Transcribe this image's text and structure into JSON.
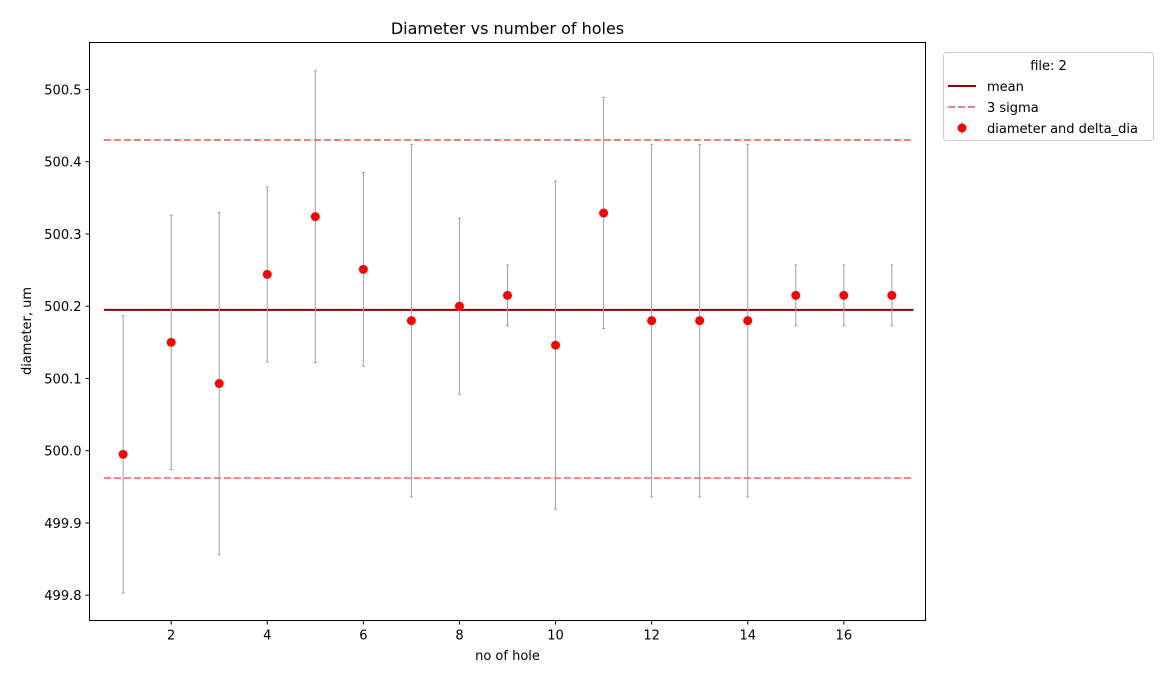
{
  "chart_data": {
    "type": "scatter",
    "title": "Diameter vs number of holes",
    "xlabel": "no of hole",
    "ylabel": "diameter, um",
    "xlim": [
      0.3,
      17.7
    ],
    "ylim": [
      499.765,
      500.565
    ],
    "xticks": [
      2,
      4,
      6,
      8,
      10,
      12,
      14,
      16
    ],
    "yticks": [
      499.8,
      499.9,
      500.0,
      500.1,
      500.2,
      500.3,
      500.4,
      500.5
    ],
    "ytick_labels": [
      "499.8",
      "499.9",
      "500.0",
      "500.1",
      "500.2",
      "500.3",
      "500.4",
      "500.5"
    ],
    "grid": false,
    "legend": {
      "title": "file: 2",
      "position": "outside-top-right",
      "entries": [
        "mean",
        "3 sigma",
        "diameter and delta_dia"
      ]
    },
    "mean": {
      "value": 500.195,
      "x_range": [
        0.6,
        17.45
      ],
      "color": "#8b0000"
    },
    "sigma_lines": {
      "values": [
        500.43,
        499.962
      ],
      "x_range": [
        0.6,
        17.45
      ],
      "color": "#f08080"
    },
    "series": [
      {
        "name": "diameter and delta_dia",
        "color": "#ff0000",
        "errorbar_color": "#a0a0a0",
        "x": [
          1,
          2,
          3,
          4,
          5,
          6,
          7,
          8,
          9,
          10,
          11,
          12,
          13,
          14,
          15,
          16,
          17
        ],
        "y": [
          499.995,
          500.15,
          500.093,
          500.244,
          500.324,
          500.251,
          500.18,
          500.2,
          500.215,
          500.146,
          500.329,
          500.18,
          500.18,
          500.18,
          500.215,
          500.215,
          500.215
        ],
        "yerr": [
          0.192,
          0.176,
          0.237,
          0.121,
          0.202,
          0.134,
          0.244,
          0.122,
          0.042,
          0.227,
          0.16,
          0.244,
          0.244,
          0.244,
          0.042,
          0.042,
          0.042
        ]
      }
    ]
  }
}
